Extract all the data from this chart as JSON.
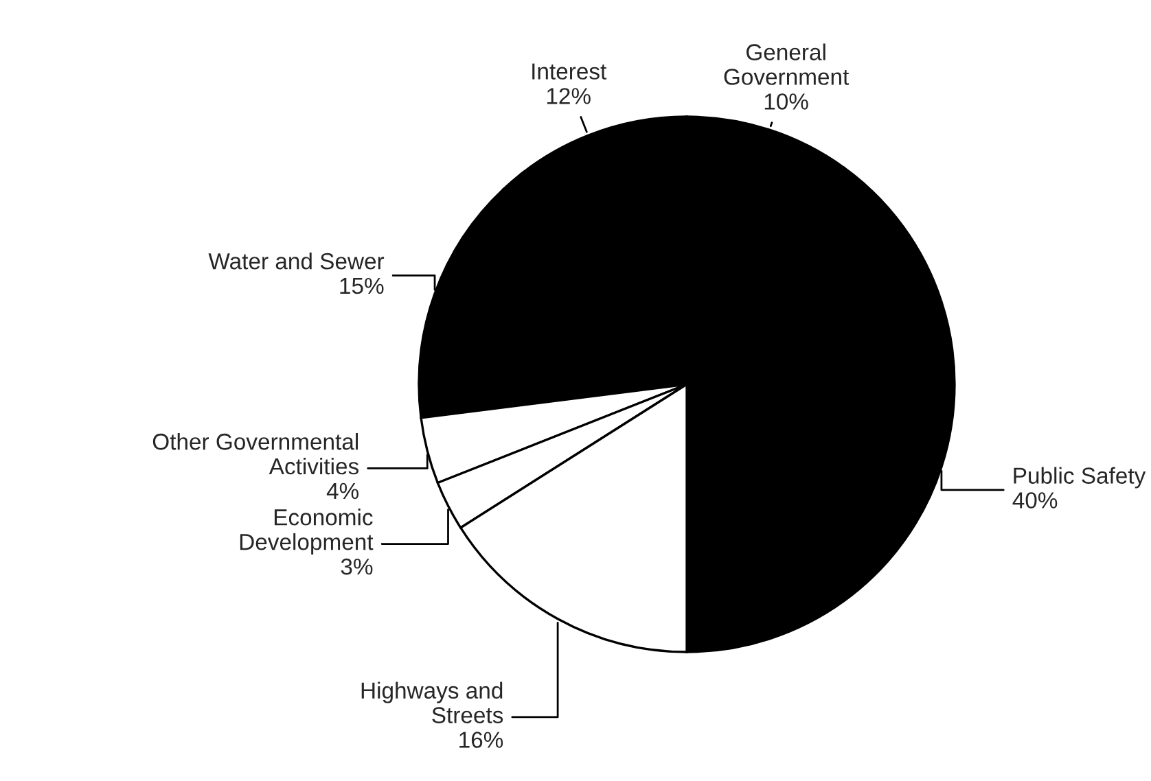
{
  "chart_data": {
    "type": "pie",
    "categories": [
      "Public Safety",
      "General\nGovernment",
      "Interest",
      "Water and Sewer",
      "Other Governmental\nActivities",
      "Economic\nDevelopment",
      "Highways and\nStreets"
    ],
    "values": [
      40,
      10,
      12,
      15,
      4,
      3,
      16
    ],
    "colors": [
      "#000000",
      "#000000",
      "#000000",
      "#000000",
      "#ffffff",
      "#ffffff",
      "#ffffff"
    ],
    "value_labels": [
      "40%",
      "10%",
      "12%",
      "15%",
      "4%",
      "3%",
      "16%"
    ]
  }
}
